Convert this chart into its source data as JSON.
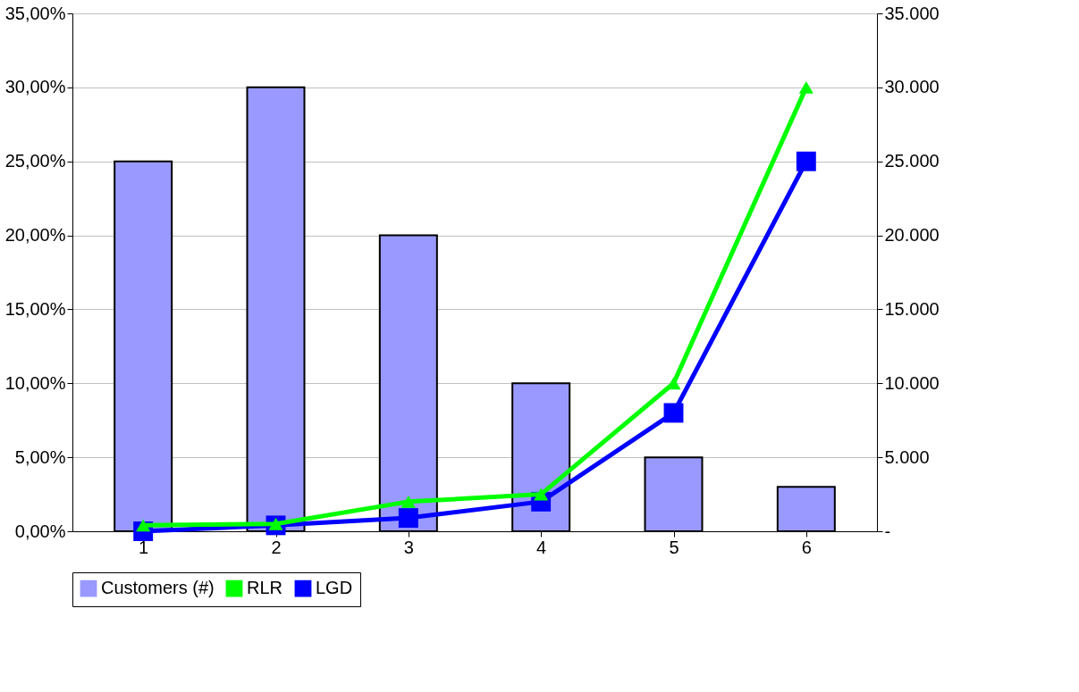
{
  "chart_data": {
    "type": "bar",
    "categories": [
      "1",
      "2",
      "3",
      "4",
      "5",
      "6"
    ],
    "series": [
      {
        "name": "Customers (#)",
        "axis": "y2",
        "color": "#9999ff",
        "values": [
          25000,
          30000,
          20000,
          10000,
          5000,
          3000
        ]
      },
      {
        "name": "RLR",
        "type": "line",
        "axis": "y",
        "color": "#00ff00",
        "marker": "triangle",
        "values": [
          0.4,
          0.5,
          2,
          2.5,
          10,
          30
        ]
      },
      {
        "name": "LGD",
        "type": "line",
        "axis": "y",
        "color": "#0000ff",
        "marker": "square",
        "values": [
          0,
          0.4,
          0.9,
          2,
          8,
          25
        ]
      }
    ],
    "ylim": [
      0,
      35
    ],
    "yticks": [
      {
        "value": 0,
        "label": "0,00%"
      },
      {
        "value": 5,
        "label": "5,00%"
      },
      {
        "value": 10,
        "label": "10,00%"
      },
      {
        "value": 15,
        "label": "15,00%"
      },
      {
        "value": 20,
        "label": "20,00%"
      },
      {
        "value": 25,
        "label": "25,00%"
      },
      {
        "value": 30,
        "label": "30,00%"
      },
      {
        "value": 35,
        "label": "35,00%"
      }
    ],
    "y2lim": [
      0,
      35000
    ],
    "y2ticks": [
      {
        "value": 0,
        "label": "-"
      },
      {
        "value": 5000,
        "label": "5.000"
      },
      {
        "value": 10000,
        "label": "10.000"
      },
      {
        "value": 15000,
        "label": "15.000"
      },
      {
        "value": 20000,
        "label": "20.000"
      },
      {
        "value": 25000,
        "label": "25.000"
      },
      {
        "value": 30000,
        "label": "30.000"
      },
      {
        "value": 35000,
        "label": "35.000"
      }
    ],
    "grid": "y",
    "legend": "bottom"
  }
}
